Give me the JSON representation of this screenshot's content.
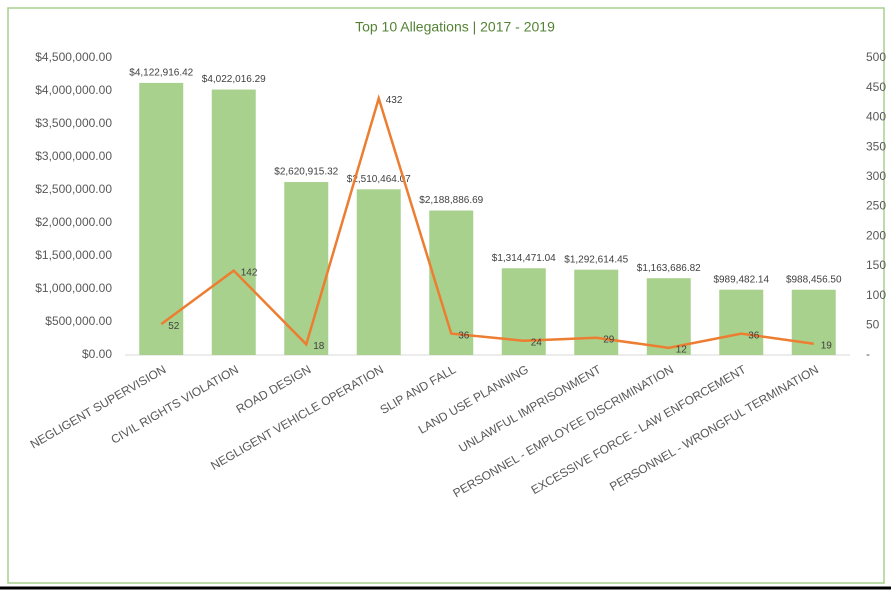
{
  "chart_data": {
    "type": "bar",
    "title": "Top 10 Allegations | 2017 - 2019",
    "categories": [
      "NEGLIGENT SUPERVISION",
      "CIVIL RIGHTS VIOLATION",
      "ROAD DESIGN",
      "NEGLIGENT VEHICLE OPERATION",
      "SLIP AND FALL",
      "LAND USE PLANNING",
      "UNLAWFUL IMPRISONMENT",
      "PERSONNEL - EMPLOYEE DISCRIMINATION",
      "EXCESSIVE FORCE - LAW ENFORCEMENT",
      "PERSONNEL - WRONGFUL TERMINATION"
    ],
    "series": [
      {
        "type": "bar",
        "color": "#a9d18e",
        "values": [
          4122916.42,
          4022016.29,
          2620915.32,
          2510464.07,
          2188886.69,
          1314471.04,
          1292614.45,
          1163686.82,
          989482.14,
          988456.5
        ],
        "value_labels": [
          "$4,122,916.42",
          "$4,022,016.29",
          "$2,620,915.32",
          "$2,510,464.07",
          "$2,188,886.69",
          "$1,314,471.04",
          "$1,292,614.45",
          "$1,163,686.82",
          "$989,482.14",
          "$988,456.50"
        ]
      },
      {
        "type": "line",
        "color": "#ed7d31",
        "axis": "y2",
        "values": [
          52,
          142,
          18,
          432,
          36,
          24,
          29,
          12,
          36,
          19
        ]
      }
    ],
    "ylim": [
      0,
      4500000
    ],
    "yticks": [
      {
        "value": 0,
        "label": "$0.00"
      },
      {
        "value": 500000,
        "label": "$500,000.00"
      },
      {
        "value": 1000000,
        "label": "$1,000,000.00"
      },
      {
        "value": 1500000,
        "label": "$1,500,000.00"
      },
      {
        "value": 2000000,
        "label": "$2,000,000.00"
      },
      {
        "value": 2500000,
        "label": "$2,500,000.00"
      },
      {
        "value": 3000000,
        "label": "$3,000,000.00"
      },
      {
        "value": 3500000,
        "label": "$3,500,000.00"
      },
      {
        "value": 4000000,
        "label": "$4,000,000.00"
      },
      {
        "value": 4500000,
        "label": "$4,500,000.00"
      }
    ],
    "y2lim": [
      0,
      500
    ],
    "y2ticks": [
      {
        "value": 0,
        "label": "-"
      },
      50,
      100,
      150,
      200,
      250,
      300,
      350,
      400,
      450,
      500
    ]
  }
}
